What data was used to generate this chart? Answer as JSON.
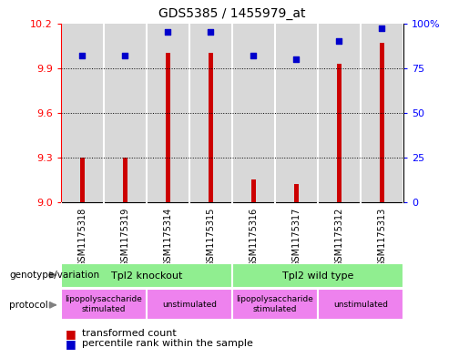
{
  "title": "GDS5385 / 1455979_at",
  "samples": [
    "GSM1175318",
    "GSM1175319",
    "GSM1175314",
    "GSM1175315",
    "GSM1175316",
    "GSM1175317",
    "GSM1175312",
    "GSM1175313"
  ],
  "bar_values": [
    9.3,
    9.3,
    10.0,
    10.0,
    9.15,
    9.12,
    9.93,
    10.07
  ],
  "percentile_values": [
    82,
    82,
    95,
    95,
    82,
    80,
    90,
    97
  ],
  "y_min": 9.0,
  "y_max": 10.2,
  "y_ticks": [
    9,
    9.3,
    9.6,
    9.9,
    10.2
  ],
  "y2_ticks": [
    0,
    25,
    50,
    75,
    100
  ],
  "bar_color": "#CC0000",
  "marker_color": "#0000CC",
  "plot_bg": "#D8D8D8",
  "white": "#FFFFFF",
  "green_light": "#90EE90",
  "pink": "#EE82EE",
  "genotype_groups": [
    {
      "label": "Tpl2 knockout",
      "start": 0,
      "end": 3
    },
    {
      "label": "Tpl2 wild type",
      "start": 4,
      "end": 7
    }
  ],
  "protocol_groups": [
    {
      "label": "lipopolysaccharide\nstimulated",
      "start": 0,
      "end": 1
    },
    {
      "label": "unstimulated",
      "start": 2,
      "end": 3
    },
    {
      "label": "lipopolysaccharide\nstimulated",
      "start": 4,
      "end": 5
    },
    {
      "label": "unstimulated",
      "start": 6,
      "end": 7
    }
  ],
  "legend_bar_label": "transformed count",
  "legend_pct_label": "percentile rank within the sample",
  "genotype_label": "genotype/variation",
  "protocol_label": "protocol"
}
